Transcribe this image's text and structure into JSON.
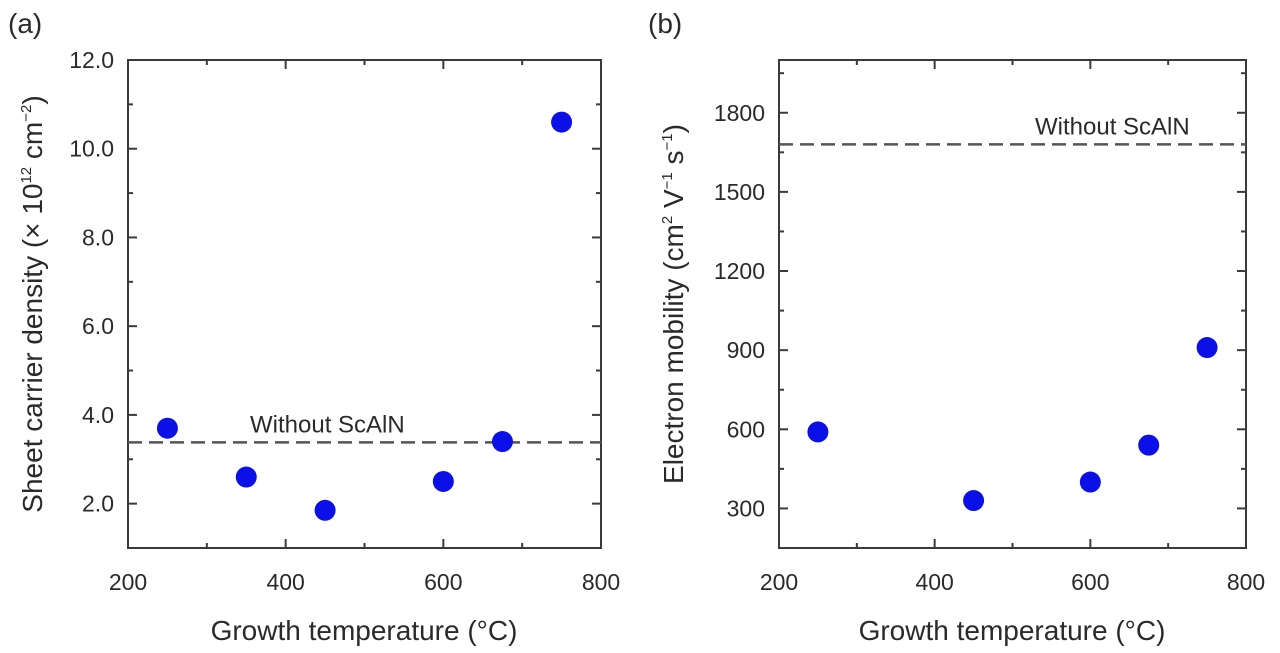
{
  "chart_data": [
    {
      "type": "scatter",
      "panel_label": "(a)",
      "xlabel": "Growth temperature (°C)",
      "ylabel": {
        "text": "Sheet carrier density (× 10",
        "sup1": "12",
        "mid": " cm",
        "sup2": "−2",
        "end": ")"
      },
      "xlim": [
        200,
        800
      ],
      "ylim": [
        1.0,
        12.0
      ],
      "xticks": [
        200,
        400,
        600,
        800
      ],
      "xtick_labels": [
        "200",
        "400",
        "600",
        "800"
      ],
      "yticks": [
        2.0,
        4.0,
        6.0,
        8.0,
        10.0,
        12.0
      ],
      "ytick_labels": [
        "2.0",
        "4.0",
        "6.0",
        "8.0",
        "10.0",
        "12.0"
      ],
      "x": [
        250,
        350,
        450,
        600,
        675,
        750
      ],
      "y": [
        3.7,
        2.6,
        1.85,
        2.5,
        3.4,
        10.6
      ],
      "reference": {
        "label": "Without ScAlN",
        "y": 3.38
      },
      "point_color": "#0a10e6",
      "grid": false
    },
    {
      "type": "scatter",
      "panel_label": "(b)",
      "xlabel": "Growth temperature (°C)",
      "ylabel": {
        "text": "Electron mobility (cm",
        "sup1": "2",
        "mid": " V",
        "sup2": "−1",
        "mid2": " s",
        "sup3": "−1",
        "end": ")"
      },
      "xlim": [
        200,
        800
      ],
      "ylim": [
        150,
        2000
      ],
      "xticks": [
        200,
        400,
        600,
        800
      ],
      "xtick_labels": [
        "200",
        "400",
        "600",
        "800"
      ],
      "yticks": [
        300,
        600,
        900,
        1200,
        1500,
        1800
      ],
      "ytick_labels": [
        "300",
        "600",
        "900",
        "1200",
        "1500",
        "1800"
      ],
      "x": [
        250,
        450,
        600,
        675,
        750
      ],
      "y": [
        590,
        330,
        400,
        540,
        910
      ],
      "reference": {
        "label": "Without ScAlN",
        "y": 1680
      },
      "point_color": "#0a10e6",
      "grid": false
    }
  ]
}
